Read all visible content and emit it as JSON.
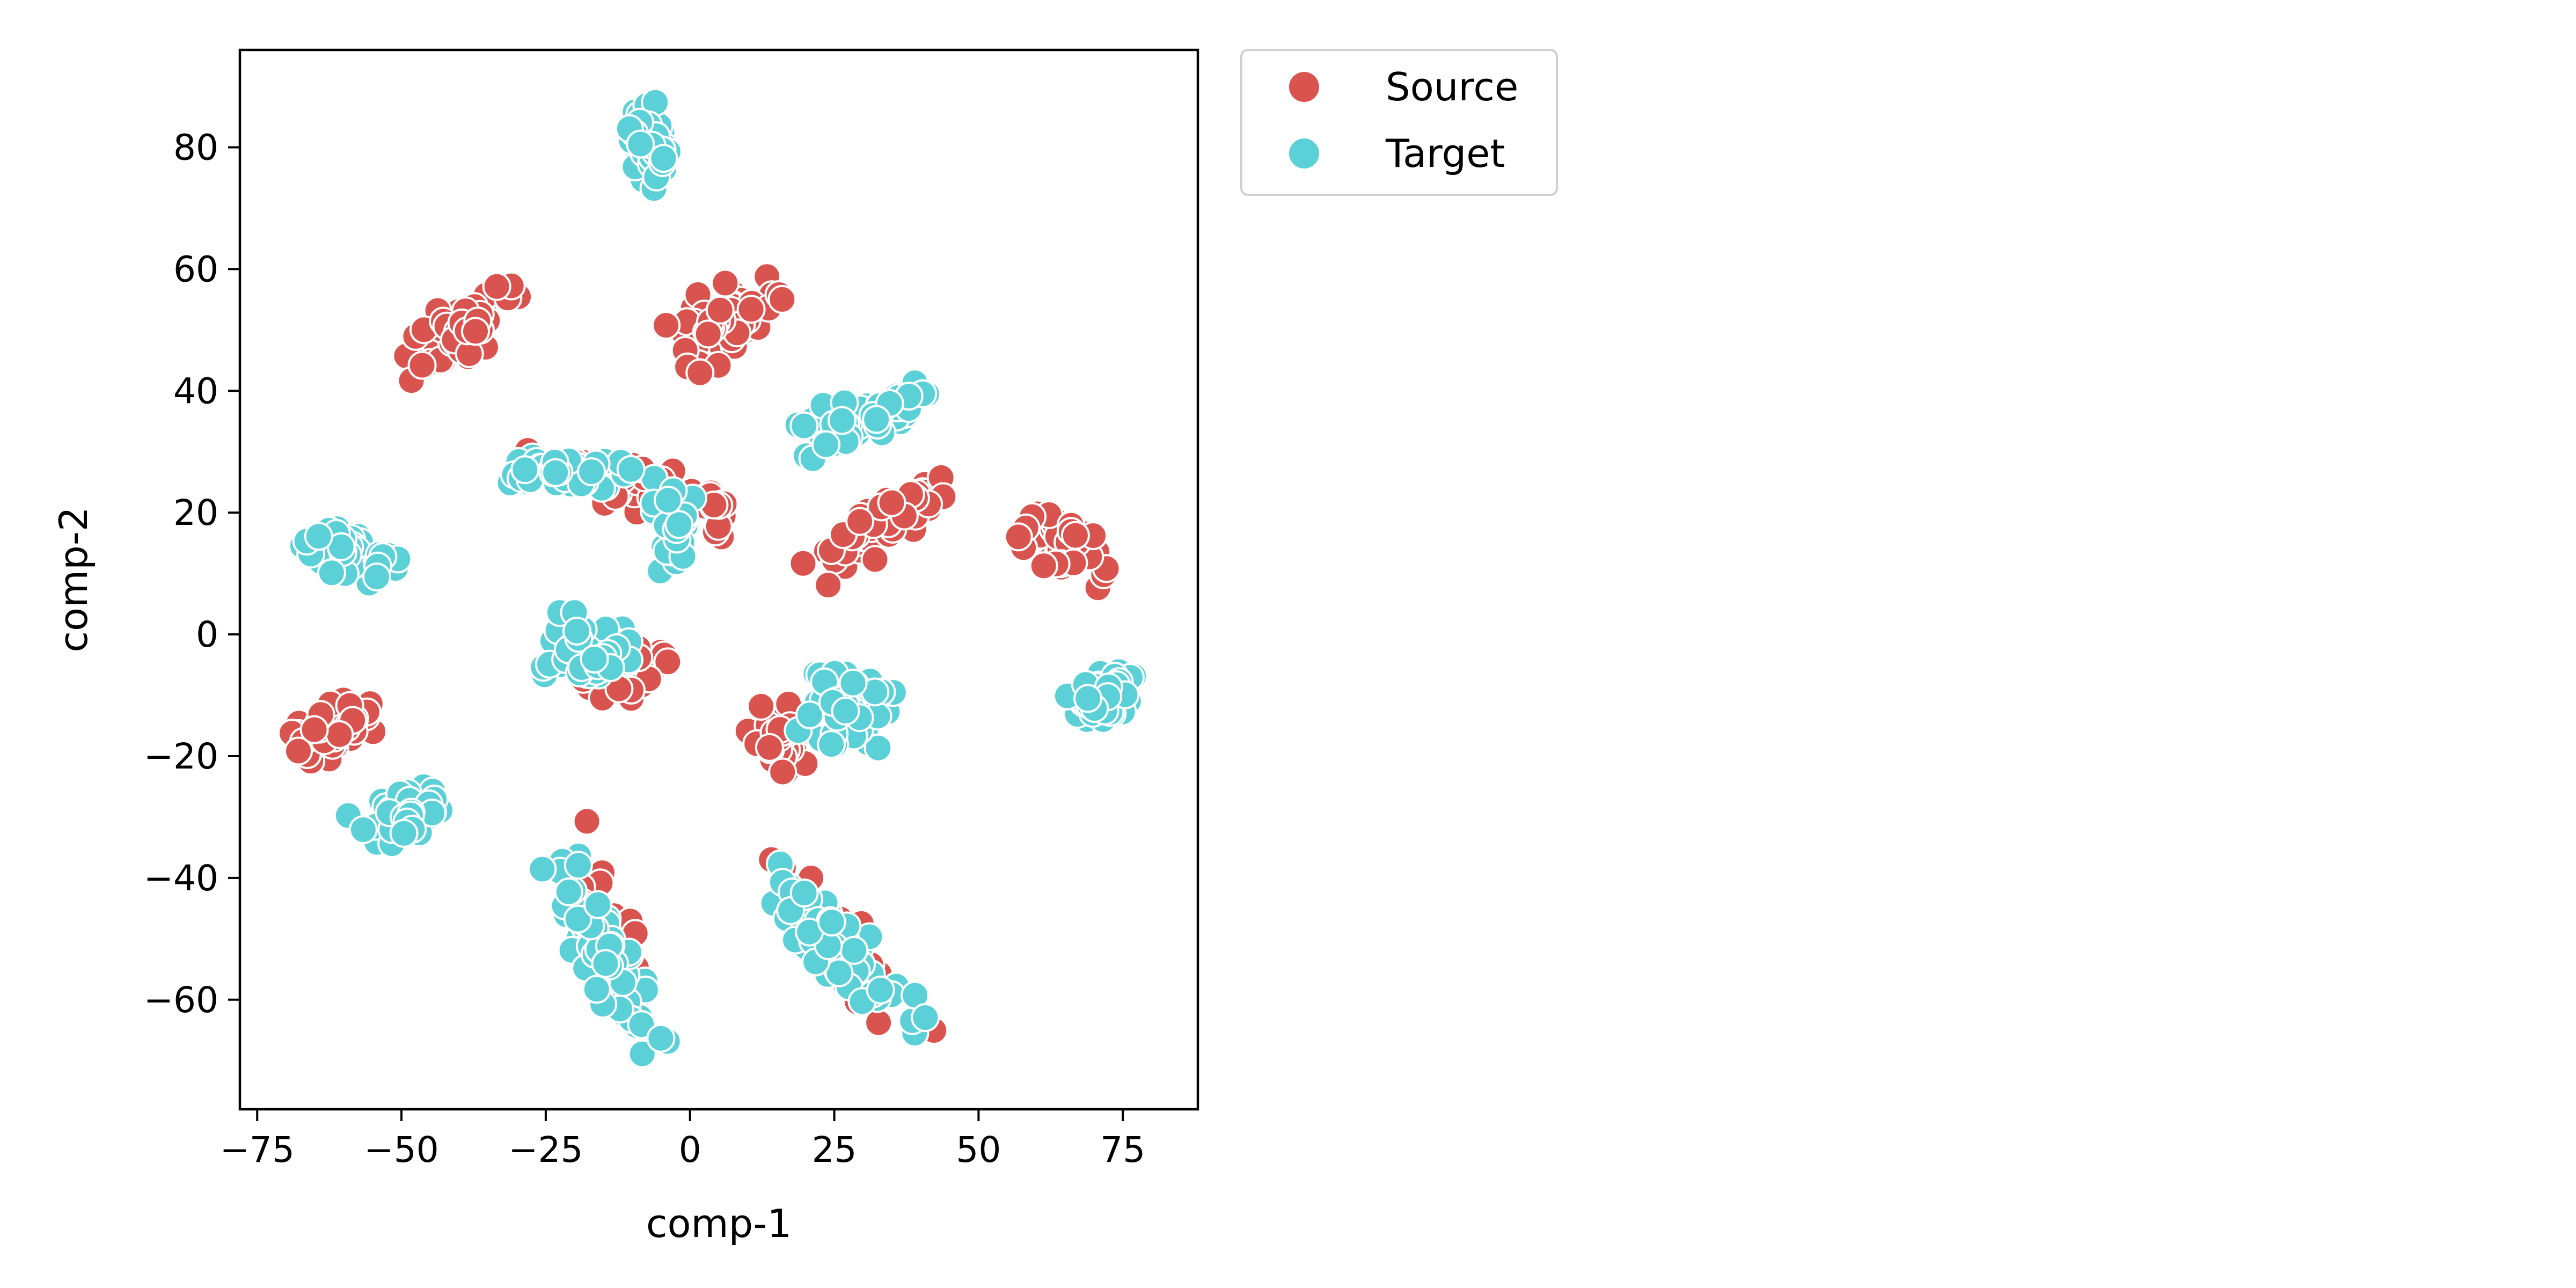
{
  "chart_data": {
    "type": "scatter",
    "xlabel": "comp-1",
    "ylabel": "comp-2",
    "xlim": [
      -78,
      88
    ],
    "ylim": [
      -78,
      96
    ],
    "xticks": [
      -75,
      -50,
      -25,
      0,
      25,
      50,
      75
    ],
    "xtick_labels": [
      "−75",
      "−50",
      "−25",
      "0",
      "25",
      "50",
      "75"
    ],
    "yticks": [
      -60,
      -40,
      -20,
      0,
      20,
      40,
      60,
      80
    ],
    "ytick_labels": [
      "−60",
      "−40",
      "−20",
      "0",
      "20",
      "40",
      "60",
      "80"
    ],
    "grid": false,
    "legend_position": "outside-top-right",
    "series": [
      {
        "name": "Source",
        "color": "#d9534f",
        "clusters": [
          {
            "cx": -40,
            "cy": 50,
            "sx": 7,
            "sy": 3,
            "angle": 35,
            "n": 60
          },
          {
            "cx": 6,
            "cy": 52,
            "sx": 6,
            "sy": 3.5,
            "angle": 35,
            "n": 60
          },
          {
            "cx": 33,
            "cy": 18,
            "sx": 9,
            "sy": 2.5,
            "angle": 35,
            "n": 60
          },
          {
            "cx": 65,
            "cy": 15,
            "sx": 3,
            "sy": 5,
            "angle": 65,
            "n": 55
          },
          {
            "cx": -8,
            "cy": 24,
            "sx": 5,
            "sy": 3,
            "angle": -10,
            "n": 30
          },
          {
            "cx": 4,
            "cy": 20,
            "sx": 1.5,
            "sy": 2.5,
            "angle": 0,
            "n": 14
          },
          {
            "cx": -22,
            "cy": 27,
            "sx": 7,
            "sy": 2,
            "angle": 0,
            "n": 18
          },
          {
            "cx": -62,
            "cy": -16,
            "sx": 5,
            "sy": 2.5,
            "angle": 30,
            "n": 55
          },
          {
            "cx": -12,
            "cy": -6,
            "sx": 5,
            "sy": 3,
            "angle": 15,
            "n": 40
          },
          {
            "cx": 15,
            "cy": -16,
            "sx": 3,
            "sy": 4,
            "angle": 0,
            "n": 40
          },
          {
            "cx": -13,
            "cy": -50,
            "sx": 3,
            "sy": 12,
            "angle": 20,
            "n": 26
          },
          {
            "cx": 27,
            "cy": -52,
            "sx": 3,
            "sy": 12,
            "angle": 40,
            "n": 26
          }
        ]
      },
      {
        "name": "Target",
        "color": "#5bd1d7",
        "clusters": [
          {
            "cx": -7,
            "cy": 80,
            "sx": 2.5,
            "sy": 4,
            "angle": 20,
            "n": 55
          },
          {
            "cx": 30,
            "cy": 36,
            "sx": 7,
            "sy": 2.5,
            "angle": 20,
            "n": 55
          },
          {
            "cx": -21,
            "cy": 27,
            "sx": 9,
            "sy": 2,
            "angle": -5,
            "n": 50
          },
          {
            "cx": -3,
            "cy": 17,
            "sx": 2.5,
            "sy": 4,
            "angle": 0,
            "n": 35
          },
          {
            "cx": -59,
            "cy": 13,
            "sx": 5,
            "sy": 2.5,
            "angle": -15,
            "n": 50
          },
          {
            "cx": -18,
            "cy": -3,
            "sx": 4.5,
            "sy": 4,
            "angle": 0,
            "n": 60
          },
          {
            "cx": 27,
            "cy": -12,
            "sx": 5,
            "sy": 4.5,
            "angle": 0,
            "n": 65
          },
          {
            "cx": 72,
            "cy": -10,
            "sx": 3.5,
            "sy": 3,
            "angle": 30,
            "n": 55
          },
          {
            "cx": -50,
            "cy": -30,
            "sx": 5,
            "sy": 2.5,
            "angle": 25,
            "n": 55
          },
          {
            "cx": -15,
            "cy": -52,
            "sx": 3,
            "sy": 11,
            "angle": 25,
            "n": 75
          },
          {
            "cx": 27,
            "cy": -52,
            "sx": 3,
            "sy": 11,
            "angle": 45,
            "n": 75
          }
        ]
      }
    ]
  }
}
